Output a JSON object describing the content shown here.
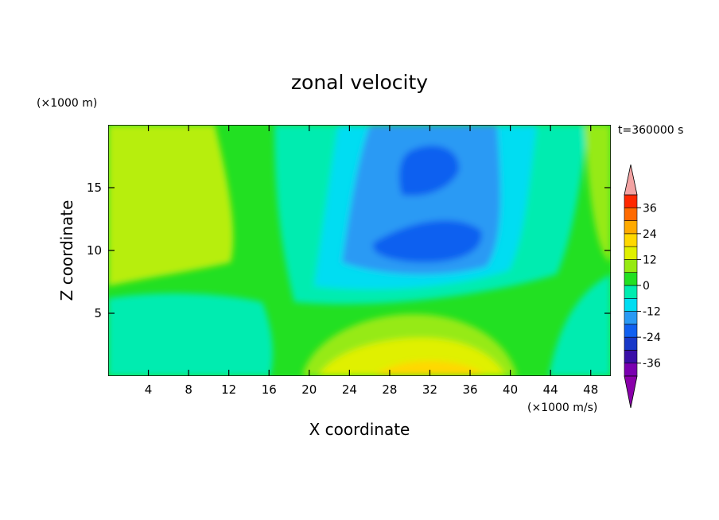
{
  "chart_data": {
    "type": "heatmap",
    "title": "zonal velocity",
    "xlabel": "X coordinate",
    "ylabel": "Z coordinate",
    "x_unit": "(×1000 m/s)",
    "y_unit": "(×1000 m)",
    "time_label": "t=360000 s",
    "xlim": [
      0,
      50
    ],
    "ylim": [
      0,
      20
    ],
    "x_ticks": [
      4,
      8,
      12,
      16,
      20,
      24,
      28,
      32,
      36,
      40,
      44,
      48
    ],
    "y_ticks": [
      5,
      10,
      15
    ],
    "grid": false,
    "colorbar": {
      "levels": [
        -42,
        -36,
        -30,
        -24,
        -18,
        -12,
        -6,
        0,
        6,
        12,
        18,
        24,
        30,
        36,
        42
      ],
      "tick_labels": [
        "36",
        "24",
        "12",
        "0",
        "-12",
        "-24",
        "-36"
      ],
      "tick_values": [
        36,
        24,
        12,
        0,
        -12,
        -24,
        -36
      ],
      "colors": [
        "#7a00b0",
        "#3a0fa8",
        "#1838c8",
        "#1060f0",
        "#2a9af4",
        "#00ddf2",
        "#00ecb0",
        "#22e022",
        "#96ea12",
        "#e0f000",
        "#ffd800",
        "#ffaa00",
        "#ff6a00",
        "#ff2800"
      ],
      "under_color": "#8a00aa",
      "over_color": "#f3a3a3"
    },
    "approx_regions": [
      {
        "x": [
          0,
          50
        ],
        "z": [
          0,
          20
        ],
        "value": 3
      },
      {
        "x": [
          0,
          10
        ],
        "z": [
          7,
          20
        ],
        "value": 8
      },
      {
        "x": [
          0,
          18
        ],
        "z": [
          0,
          7
        ],
        "value": -7
      },
      {
        "x": [
          18,
          42
        ],
        "z": [
          7,
          20
        ],
        "value": -12
      },
      {
        "x": [
          24,
          38
        ],
        "z": [
          9,
          16
        ],
        "value": -18
      },
      {
        "x": [
          28,
          33
        ],
        "z": [
          15,
          18
        ],
        "value": -24
      },
      {
        "x": [
          28,
          40
        ],
        "z": [
          0,
          4
        ],
        "value": 9
      },
      {
        "x": [
          30,
          36
        ],
        "z": [
          0,
          2
        ],
        "value": 14
      }
    ]
  }
}
